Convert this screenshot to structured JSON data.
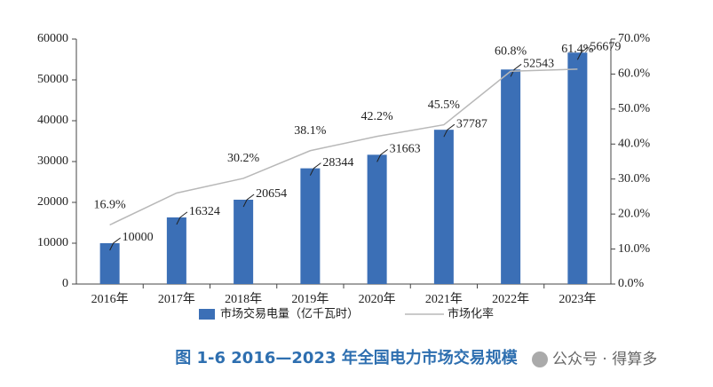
{
  "chart_data": {
    "type": "bar-line",
    "title": "图 1-6   2016—2023 年全国电力市场交易规模",
    "categories": [
      "2016年",
      "2017年",
      "2018年",
      "2019年",
      "2020年",
      "2021年",
      "2022年",
      "2023年"
    ],
    "series": [
      {
        "name": "市场交易电量（亿千瓦时）",
        "type": "bar",
        "color": "#3b6fb6",
        "axis": "y",
        "values": [
          10000,
          16324,
          20654,
          28344,
          31663,
          37787,
          52543,
          56679
        ]
      },
      {
        "name": "市场化率",
        "type": "line",
        "color": "#b8b8b8",
        "axis": "y2",
        "values": [
          16.9,
          26,
          30.2,
          38.1,
          42.2,
          45.5,
          60.8,
          61.4
        ],
        "value_labels": [
          "16.9%",
          null,
          "30.2%",
          "38.1%",
          "42.2%",
          "45.5%",
          "60.8%",
          "61.4%"
        ]
      }
    ],
    "ylim": [
      0,
      60000
    ],
    "yticks": [
      0,
      10000,
      20000,
      30000,
      40000,
      50000,
      60000
    ],
    "y2lim": [
      0,
      70
    ],
    "y2ticks": [
      {
        "value": 0,
        "label": "0.0%"
      },
      {
        "value": 10,
        "label": "10.0%"
      },
      {
        "value": 20,
        "label": "20.0%"
      },
      {
        "value": 30,
        "label": "30.0%"
      },
      {
        "value": 40,
        "label": "40.0%"
      },
      {
        "value": 50,
        "label": "50.0%"
      },
      {
        "value": 60,
        "label": "60.0%"
      },
      {
        "value": 70,
        "label": "70.0%"
      }
    ]
  },
  "watermark": "公众号 · 得算多"
}
